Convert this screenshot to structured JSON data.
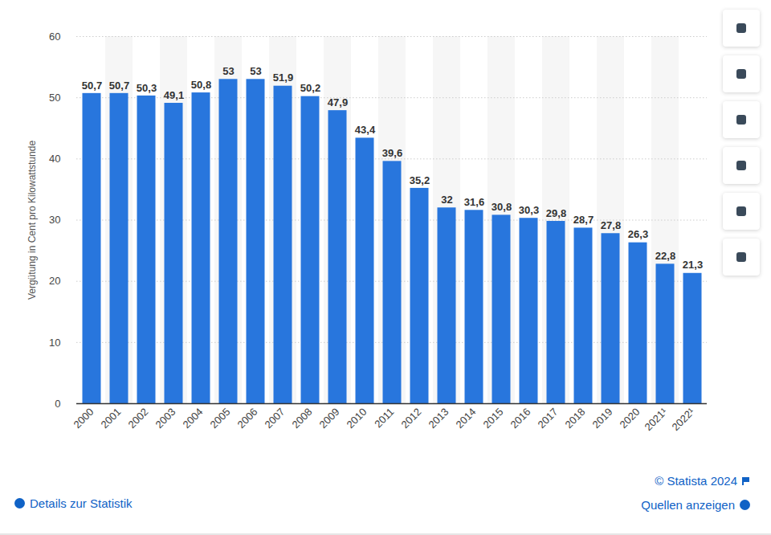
{
  "chart_data": {
    "type": "bar",
    "y_label": "Vergütung in Cent pro Kilowattstunde",
    "categories": [
      "2000",
      "2001",
      "2002",
      "2003",
      "2004",
      "2005",
      "2006",
      "2007",
      "2008",
      "2009",
      "2010",
      "2011",
      "2012",
      "2013",
      "2014",
      "2015",
      "2016",
      "2017",
      "2018",
      "2019",
      "2020",
      "2021¹",
      "2022¹"
    ],
    "values": [
      50.7,
      50.7,
      50.3,
      49.1,
      50.8,
      53,
      53,
      51.9,
      50.2,
      47.9,
      43.4,
      39.6,
      35.2,
      32,
      31.6,
      30.8,
      30.3,
      29.8,
      28.7,
      27.8,
      26.3,
      22.8,
      21.3
    ],
    "value_labels": [
      "50,7",
      "50,7",
      "50,3",
      "49,1",
      "50,8",
      "53",
      "53",
      "51,9",
      "50,2",
      "47,9",
      "43,4",
      "39,6",
      "35,2",
      "32",
      "31,6",
      "30,8",
      "30,3",
      "29,8",
      "28,7",
      "27,8",
      "26,3",
      "22,8",
      "21,3"
    ],
    "color": "#2876dd",
    "ylim": [
      0,
      60
    ],
    "yticks": [
      0,
      10,
      20,
      30,
      40,
      50,
      60
    ],
    "grid": true,
    "data_labels": true,
    "annotations": [
      "© Statista 2024",
      "Details zur Statistik",
      "Quellen anzeigen"
    ]
  }
}
